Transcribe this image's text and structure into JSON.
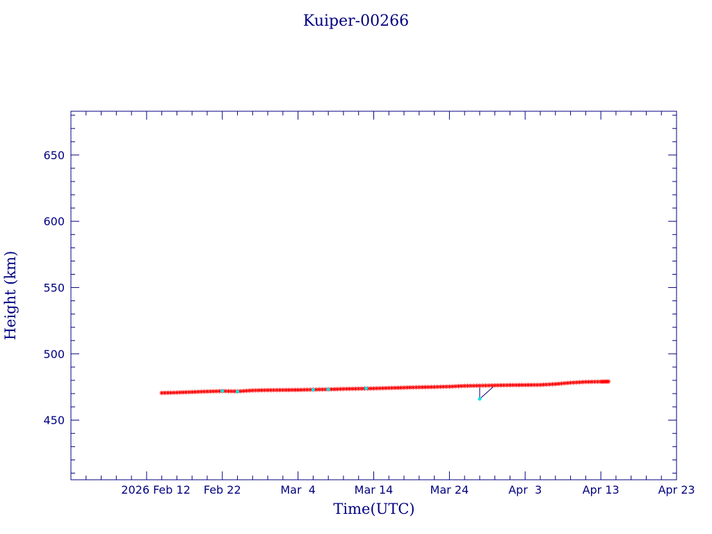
{
  "colors": {
    "axis": "#000080",
    "marker_primary": "#ff0000",
    "marker_secondary": "#00e5e5",
    "line": "#000080"
  },
  "chart_data": {
    "type": "line",
    "title": "Kuiper-00266",
    "xlabel": "Time(UTC)",
    "ylabel": "Height (km)",
    "x_tick_labels": [
      "2026 Feb 12",
      "Feb 22",
      "Mar  4",
      "Mar 14",
      "Mar 24",
      "Apr  3",
      "Apr 13",
      "Apr 23"
    ],
    "x_tick_dates": [
      "2026-02-12",
      "2026-02-22",
      "2026-03-04",
      "2026-03-14",
      "2026-03-24",
      "2026-04-03",
      "2026-04-13",
      "2026-04-23"
    ],
    "y_tick_labels": [
      "450",
      "500",
      "550",
      "600",
      "650"
    ],
    "y_tick_values": [
      450,
      500,
      550,
      600,
      650
    ],
    "xlim": [
      "2026-02-02",
      "2026-04-23"
    ],
    "ylim": [
      405,
      683
    ],
    "grid": false,
    "series": [
      {
        "marker": "star",
        "color": "#ff0000",
        "points": [
          [
            "2026-02-14",
            470.5
          ],
          [
            "2026-02-16",
            470.8
          ],
          [
            "2026-02-18",
            471.2
          ],
          [
            "2026-02-20",
            471.6
          ],
          [
            "2026-02-22",
            471.9
          ],
          [
            "2026-02-24",
            471.7
          ],
          [
            "2026-02-26",
            472.4
          ],
          [
            "2026-02-28",
            472.6
          ],
          [
            "2026-03-02",
            472.7
          ],
          [
            "2026-03-04",
            472.8
          ],
          [
            "2026-03-06",
            473.0
          ],
          [
            "2026-03-08",
            473.2
          ],
          [
            "2026-03-10",
            473.5
          ],
          [
            "2026-03-12",
            473.7
          ],
          [
            "2026-03-14",
            473.9
          ],
          [
            "2026-03-16",
            474.2
          ],
          [
            "2026-03-18",
            474.5
          ],
          [
            "2026-03-20",
            474.8
          ],
          [
            "2026-03-22",
            475.0
          ],
          [
            "2026-03-24",
            475.3
          ],
          [
            "2026-03-26",
            475.8
          ],
          [
            "2026-03-28",
            476.0
          ],
          [
            "2026-03-30",
            476.2
          ],
          [
            "2026-04-01",
            476.4
          ],
          [
            "2026-04-03",
            476.5
          ],
          [
            "2026-04-05",
            476.6
          ],
          [
            "2026-04-07",
            477.2
          ],
          [
            "2026-04-09",
            478.2
          ],
          [
            "2026-04-11",
            478.8
          ],
          [
            "2026-04-13",
            479.0
          ],
          [
            "2026-04-14",
            479.1
          ]
        ]
      },
      {
        "marker": "dot",
        "color": "#00e5e5",
        "points": [
          [
            "2026-02-22",
            472.0
          ],
          [
            "2026-02-24",
            471.5
          ],
          [
            "2026-03-06",
            472.9
          ],
          [
            "2026-03-08",
            473.2
          ],
          [
            "2026-03-13",
            474.0
          ],
          [
            "2026-03-28",
            466.0
          ]
        ]
      }
    ]
  }
}
